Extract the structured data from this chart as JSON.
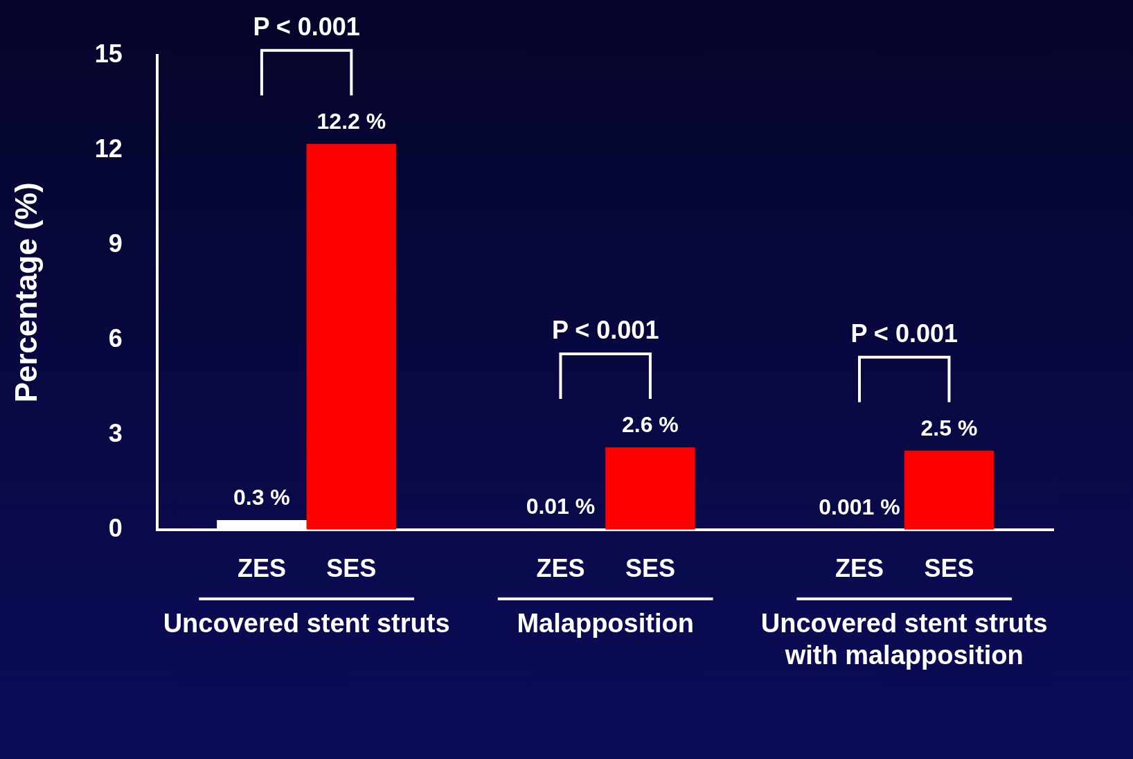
{
  "chart_data": {
    "type": "bar",
    "ylabel": "Percentage (%)",
    "categories": [
      "Uncovered stent struts",
      "Malapposition",
      "Uncovered stent struts with malapposition"
    ],
    "series": [
      {
        "name": "ZES",
        "color": "#ffffff",
        "values": [
          0.3,
          0.01,
          0.001
        ],
        "value_labels": [
          "0.3 %",
          "0.01 %",
          "0.001 %"
        ]
      },
      {
        "name": "SES",
        "color": "#ff0000",
        "values": [
          12.2,
          2.6,
          2.5
        ],
        "value_labels": [
          "12.2 %",
          "2.6 %",
          "2.5 %"
        ]
      }
    ],
    "ylim": [
      0,
      15
    ],
    "yticks": [
      0,
      3,
      6,
      9,
      12,
      15
    ],
    "grid": false,
    "legend": "bottom",
    "annotations": [
      "P < 0.001",
      "P < 0.001",
      "P < 0.001"
    ]
  }
}
